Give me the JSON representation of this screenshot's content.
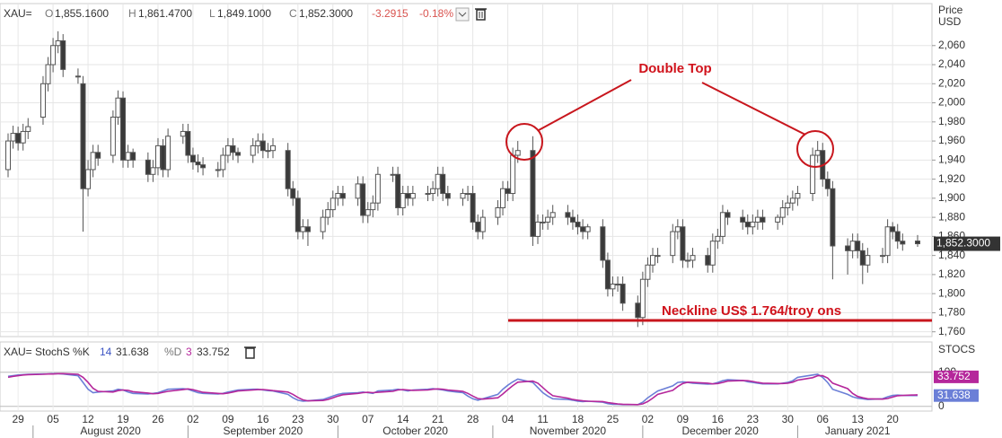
{
  "header": {
    "symbol": "XAU=",
    "open_label": "O",
    "open": "1,855.1600",
    "high_label": "H",
    "high": "1,861.4700",
    "low_label": "L",
    "low": "1,849.1000",
    "close_label": "C",
    "close": "1,852.3000",
    "change": "-3.2915",
    "change_pct": "-0.18%"
  },
  "chart_data": {
    "type": "candlestick",
    "y_label": [
      "Price",
      "USD"
    ],
    "last_price_label": "1,852.3000",
    "annotations": {
      "pattern": "Double Top",
      "neckline": "Neckline US$ 1.764/troy ons"
    },
    "up_color": "#ffffff",
    "down_color": "#3a3a3a",
    "edge_color": "#555555",
    "grid": true,
    "x": [
      "2020-07-27",
      "2020-07-28",
      "2020-07-29",
      "2020-07-30",
      "2020-07-31",
      "2020-08-03",
      "2020-08-04",
      "2020-08-05",
      "2020-08-06",
      "2020-08-07",
      "2020-08-10",
      "2020-08-11",
      "2020-08-12",
      "2020-08-13",
      "2020-08-14",
      "2020-08-17",
      "2020-08-18",
      "2020-08-19",
      "2020-08-20",
      "2020-08-21",
      "2020-08-24",
      "2020-08-25",
      "2020-08-26",
      "2020-08-27",
      "2020-08-28",
      "2020-08-31",
      "2020-09-01",
      "2020-09-02",
      "2020-09-03",
      "2020-09-04",
      "2020-09-07",
      "2020-09-08",
      "2020-09-09",
      "2020-09-10",
      "2020-09-11",
      "2020-09-14",
      "2020-09-15",
      "2020-09-16",
      "2020-09-17",
      "2020-09-18",
      "2020-09-21",
      "2020-09-22",
      "2020-09-23",
      "2020-09-24",
      "2020-09-25",
      "2020-09-28",
      "2020-09-29",
      "2020-09-30",
      "2020-10-01",
      "2020-10-02",
      "2020-10-05",
      "2020-10-06",
      "2020-10-07",
      "2020-10-08",
      "2020-10-09",
      "2020-10-12",
      "2020-10-13",
      "2020-10-14",
      "2020-10-15",
      "2020-10-16",
      "2020-10-19",
      "2020-10-20",
      "2020-10-21",
      "2020-10-22",
      "2020-10-23",
      "2020-10-26",
      "2020-10-27",
      "2020-10-28",
      "2020-10-29",
      "2020-10-30",
      "2020-11-02",
      "2020-11-03",
      "2020-11-04",
      "2020-11-05",
      "2020-11-06",
      "2020-11-09",
      "2020-11-10",
      "2020-11-11",
      "2020-11-12",
      "2020-11-13",
      "2020-11-16",
      "2020-11-17",
      "2020-11-18",
      "2020-11-19",
      "2020-11-20",
      "2020-11-23",
      "2020-11-24",
      "2020-11-25",
      "2020-11-26",
      "2020-11-27",
      "2020-11-30",
      "2020-12-01",
      "2020-12-02",
      "2020-12-03",
      "2020-12-04",
      "2020-12-07",
      "2020-12-08",
      "2020-12-09",
      "2020-12-10",
      "2020-12-11",
      "2020-12-14",
      "2020-12-15",
      "2020-12-16",
      "2020-12-17",
      "2020-12-18",
      "2020-12-21",
      "2020-12-22",
      "2020-12-23",
      "2020-12-24",
      "2020-12-25",
      "2020-12-28",
      "2020-12-29",
      "2020-12-30",
      "2020-12-31",
      "2021-01-01",
      "2021-01-04",
      "2021-01-05",
      "2021-01-06",
      "2021-01-07",
      "2021-01-08",
      "2021-01-11",
      "2021-01-12",
      "2021-01-13",
      "2021-01-14",
      "2021-01-15",
      "2021-01-18",
      "2021-01-19",
      "2021-01-20",
      "2021-01-21",
      "2021-01-22",
      "2021-01-25"
    ],
    "open": [
      1930,
      1960,
      1968,
      1958,
      1970,
      1985,
      2020,
      2040,
      2060,
      2065,
      2028,
      2020,
      1910,
      1930,
      1948,
      1945,
      1985,
      2005,
      1940,
      1948,
      1940,
      1925,
      1932,
      1955,
      1930,
      1965,
      1970,
      1945,
      1938,
      1935,
      1930,
      1930,
      1945,
      1955,
      1948,
      1945,
      1955,
      1960,
      1950,
      1950,
      1950,
      1910,
      1900,
      1865,
      1870,
      1865,
      1880,
      1888,
      1900,
      1905,
      1900,
      1915,
      1882,
      1888,
      1895,
      1925,
      1925,
      1890,
      1905,
      1900,
      1905,
      1905,
      1910,
      1925,
      1905,
      1900,
      1905,
      1905,
      1875,
      1865,
      1880,
      1890,
      1910,
      1905,
      1945,
      1950,
      1860,
      1875,
      1875,
      1880,
      1885,
      1880,
      1875,
      1870,
      1865,
      1870,
      1835,
      1805,
      1810,
      1810,
      1790,
      1775,
      1815,
      1830,
      1840,
      1840,
      1865,
      1870,
      1835,
      1835,
      1840,
      1830,
      1855,
      1860,
      1885,
      1880,
      1875,
      1870,
      1875,
      1880,
      1875,
      1880,
      1890,
      1895,
      1900,
      1905,
      1945,
      1950,
      1920,
      1910,
      1850,
      1845,
      1855,
      1845,
      1830,
      1840,
      1840,
      1870,
      1865,
      1855,
      1855.16
    ],
    "high": [
      1968,
      1976,
      1975,
      1978,
      1984,
      2028,
      2048,
      2068,
      2075,
      2072,
      2036,
      2028,
      1940,
      1956,
      1956,
      1992,
      2013,
      2012,
      1956,
      1952,
      1948,
      1940,
      1963,
      1962,
      1973,
      1978,
      1978,
      1953,
      1946,
      1943,
      1938,
      1953,
      1963,
      1963,
      1953,
      1963,
      1968,
      1968,
      1958,
      1963,
      1958,
      1918,
      1908,
      1878,
      1878,
      1888,
      1896,
      1908,
      1913,
      1913,
      1923,
      1923,
      1896,
      1903,
      1933,
      1933,
      1933,
      1913,
      1913,
      1913,
      1913,
      1918,
      1933,
      1933,
      1913,
      1910,
      1913,
      1913,
      1883,
      1888,
      1898,
      1918,
      1918,
      1953,
      1960,
      1965,
      1883,
      1883,
      1888,
      1893,
      1893,
      1888,
      1883,
      1878,
      1873,
      1878,
      1843,
      1818,
      1818,
      1818,
      1798,
      1823,
      1838,
      1848,
      1848,
      1873,
      1878,
      1878,
      1843,
      1848,
      1848,
      1863,
      1868,
      1893,
      1888,
      1888,
      1883,
      1883,
      1888,
      1888,
      1883,
      1898,
      1903,
      1908,
      1913,
      1953,
      1960,
      1958,
      1928,
      1918,
      1858,
      1863,
      1863,
      1853,
      1848,
      1848,
      1878,
      1875,
      1873,
      1863,
      1861.47
    ],
    "low": [
      1922,
      1952,
      1950,
      1950,
      1962,
      1977,
      2012,
      2032,
      2052,
      2027,
      2020,
      1865,
      1902,
      1922,
      1934,
      1937,
      1977,
      1932,
      1932,
      1932,
      1917,
      1917,
      1924,
      1922,
      1922,
      1957,
      1937,
      1930,
      1927,
      1924,
      1922,
      1922,
      1937,
      1940,
      1937,
      1937,
      1947,
      1942,
      1942,
      1942,
      1902,
      1892,
      1857,
      1857,
      1850,
      1857,
      1872,
      1880,
      1892,
      1892,
      1892,
      1874,
      1874,
      1880,
      1887,
      1917,
      1882,
      1882,
      1892,
      1892,
      1897,
      1897,
      1902,
      1897,
      1892,
      1892,
      1897,
      1867,
      1857,
      1857,
      1872,
      1882,
      1897,
      1897,
      1937,
      1850,
      1852,
      1867,
      1867,
      1872,
      1872,
      1867,
      1862,
      1857,
      1857,
      1827,
      1797,
      1797,
      1802,
      1782,
      1765,
      1767,
      1807,
      1822,
      1832,
      1832,
      1857,
      1827,
      1827,
      1827,
      1822,
      1822,
      1847,
      1852,
      1872,
      1867,
      1862,
      1862,
      1867,
      1867,
      1867,
      1872,
      1882,
      1887,
      1892,
      1897,
      1937,
      1912,
      1902,
      1815,
      1820,
      1837,
      1837,
      1810,
      1822,
      1832,
      1832,
      1857,
      1847,
      1845,
      1849.1
    ],
    "close": [
      1960,
      1968,
      1958,
      1970,
      1975,
      2020,
      2040,
      2060,
      2065,
      2035,
      2028,
      1910,
      1930,
      1948,
      1942,
      1985,
      2005,
      1940,
      1948,
      1940,
      1925,
      1932,
      1955,
      1930,
      1965,
      1970,
      1945,
      1938,
      1935,
      1932,
      1930,
      1945,
      1955,
      1948,
      1945,
      1955,
      1960,
      1950,
      1950,
      1955,
      1910,
      1900,
      1865,
      1870,
      1865,
      1880,
      1888,
      1900,
      1905,
      1900,
      1915,
      1882,
      1888,
      1895,
      1925,
      1925,
      1890,
      1905,
      1900,
      1905,
      1905,
      1910,
      1925,
      1905,
      1900,
      1905,
      1905,
      1875,
      1865,
      1880,
      1890,
      1910,
      1905,
      1945,
      1950,
      1860,
      1875,
      1875,
      1880,
      1885,
      1880,
      1875,
      1870,
      1865,
      1870,
      1835,
      1805,
      1810,
      1810,
      1790,
      1775,
      1815,
      1830,
      1840,
      1840,
      1865,
      1870,
      1835,
      1835,
      1840,
      1830,
      1855,
      1860,
      1885,
      1880,
      1875,
      1870,
      1875,
      1880,
      1875,
      1880,
      1890,
      1895,
      1900,
      1905,
      1945,
      1950,
      1920,
      1910,
      1850,
      1845,
      1855,
      1845,
      1830,
      1840,
      1840,
      1870,
      1865,
      1855,
      1852,
      1852.3
    ],
    "ylim": [
      1755,
      2104
    ],
    "yticks": [
      {
        "value": 1760,
        "label": "1,760"
      },
      {
        "value": 1780,
        "label": "1,780"
      },
      {
        "value": 1800,
        "label": "1,800"
      },
      {
        "value": 1820,
        "label": "1,820"
      },
      {
        "value": 1840,
        "label": "1,840"
      },
      {
        "value": 1860,
        "label": "1,860"
      },
      {
        "value": 1880,
        "label": "1,880"
      },
      {
        "value": 1900,
        "label": "1,900"
      },
      {
        "value": 1920,
        "label": "1,920"
      },
      {
        "value": 1940,
        "label": "1,940"
      },
      {
        "value": 1960,
        "label": "1,960"
      },
      {
        "value": 1980,
        "label": "1,980"
      },
      {
        "value": 2000,
        "label": "2,000"
      },
      {
        "value": 2020,
        "label": "2,020"
      },
      {
        "value": 2040,
        "label": "2,040"
      },
      {
        "value": 2060,
        "label": "2,060"
      }
    ],
    "xticks": [
      {
        "value": "2020-07-29",
        "label": "29"
      },
      {
        "value": "2020-08-05",
        "label": "05"
      },
      {
        "value": "2020-08-12",
        "label": "12"
      },
      {
        "value": "2020-08-19",
        "label": "19"
      },
      {
        "value": "2020-08-26",
        "label": "26"
      },
      {
        "value": "2020-09-02",
        "label": "02"
      },
      {
        "value": "2020-09-09",
        "label": "09"
      },
      {
        "value": "2020-09-16",
        "label": "16"
      },
      {
        "value": "2020-09-23",
        "label": "23"
      },
      {
        "value": "2020-09-30",
        "label": "30"
      },
      {
        "value": "2020-10-07",
        "label": "07"
      },
      {
        "value": "2020-10-14",
        "label": "14"
      },
      {
        "value": "2020-10-21",
        "label": "21"
      },
      {
        "value": "2020-10-28",
        "label": "28"
      },
      {
        "value": "2020-11-04",
        "label": "04"
      },
      {
        "value": "2020-11-11",
        "label": "11"
      },
      {
        "value": "2020-11-18",
        "label": "18"
      },
      {
        "value": "2020-11-25",
        "label": "25"
      },
      {
        "value": "2020-12-02",
        "label": "02"
      },
      {
        "value": "2020-12-09",
        "label": "09"
      },
      {
        "value": "2020-12-16",
        "label": "16"
      },
      {
        "value": "2020-12-23",
        "label": "23"
      },
      {
        "value": "2020-12-30",
        "label": "30"
      },
      {
        "value": "2021-01-06",
        "label": "06"
      },
      {
        "value": "2021-01-13",
        "label": "13"
      },
      {
        "value": "2021-01-20",
        "label": "20"
      }
    ],
    "month_labels": [
      {
        "value": "2020-08",
        "label": "August 2020"
      },
      {
        "value": "2020-09",
        "label": "September 2020"
      },
      {
        "value": "2020-10",
        "label": "October 2020"
      },
      {
        "value": "2020-11",
        "label": "November 2020"
      },
      {
        "value": "2020-12",
        "label": "December 2020"
      },
      {
        "value": "2021-01",
        "label": "January 2021"
      }
    ],
    "indicator": {
      "type": "line",
      "header": {
        "name": "XAU= StochS %K",
        "k_period": "14",
        "k_value": "31.638",
        "d_name": "%D",
        "d_period": "3",
        "d_value": "33.752"
      },
      "axis_label": "STOCS",
      "ylim": [
        -14,
        189
      ],
      "yticks": [
        0,
        100
      ],
      "series": [
        {
          "name": "%K",
          "color": "#6b7fd7",
          "values": [
            88,
            90,
            92,
            93,
            94,
            95,
            95,
            96,
            96,
            95,
            90,
            70,
            50,
            40,
            42,
            45,
            50,
            48,
            42,
            38,
            36,
            38,
            40,
            45,
            50,
            52,
            50,
            45,
            40,
            38,
            36,
            38,
            42,
            45,
            48,
            50,
            50,
            48,
            46,
            45,
            35,
            25,
            18,
            15,
            16,
            20,
            25,
            30,
            35,
            38,
            40,
            42,
            40,
            38,
            45,
            48,
            50,
            48,
            45,
            48,
            50,
            52,
            50,
            48,
            45,
            40,
            30,
            22,
            18,
            22,
            35,
            50,
            62,
            72,
            80,
            70,
            55,
            40,
            30,
            22,
            20,
            18,
            15,
            14,
            15,
            12,
            8,
            6,
            6,
            5,
            5,
            12,
            25,
            35,
            45,
            60,
            70,
            72,
            70,
            68,
            65,
            66,
            70,
            75,
            78,
            76,
            72,
            70,
            68,
            66,
            66,
            68,
            70,
            75,
            85,
            92,
            94,
            85,
            70,
            50,
            35,
            28,
            24,
            22,
            20,
            22,
            28,
            32,
            33,
            32,
            31.638
          ]
        },
        {
          "name": "%D",
          "color": "#b5279b",
          "values": [
            85,
            88,
            90,
            92,
            93,
            94,
            95,
            95,
            96,
            96,
            94,
            85,
            70,
            53,
            44,
            42,
            46,
            48,
            47,
            43,
            39,
            37,
            38,
            41,
            44,
            49,
            51,
            49,
            45,
            41,
            38,
            37,
            39,
            42,
            45,
            48,
            49,
            49,
            48,
            46,
            42,
            35,
            26,
            19,
            16,
            17,
            20,
            25,
            30,
            34,
            38,
            40,
            41,
            40,
            41,
            44,
            48,
            49,
            48,
            47,
            48,
            50,
            51,
            50,
            48,
            44,
            38,
            30,
            23,
            21,
            25,
            36,
            49,
            61,
            71,
            74,
            68,
            55,
            42,
            31,
            24,
            20,
            18,
            16,
            15,
            14,
            11,
            9,
            7,
            6,
            5,
            7,
            14,
            24,
            35,
            47,
            58,
            67,
            71,
            70,
            68,
            66,
            67,
            70,
            74,
            76,
            75,
            73,
            70,
            68,
            67,
            67,
            68,
            71,
            77,
            84,
            90,
            90,
            83,
            68,
            52,
            38,
            29,
            25,
            22,
            21,
            23,
            27,
            31,
            32,
            33.752
          ]
        }
      ]
    }
  }
}
